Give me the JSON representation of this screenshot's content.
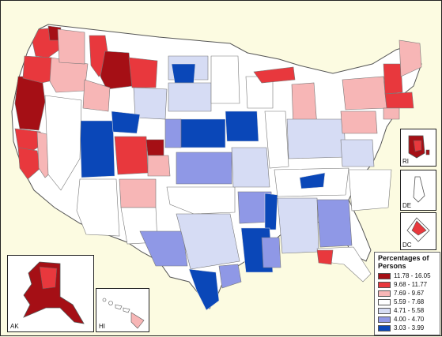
{
  "legend": {
    "title": "Percentages of Persons",
    "bins": [
      {
        "label": "11.78 - 16.05",
        "color": "#a50f15"
      },
      {
        "label": "9.68 - 11.77",
        "color": "#e8383d"
      },
      {
        "label": "7.69 - 9.67",
        "color": "#f7b6b6"
      },
      {
        "label": "5.59 - 7.68",
        "color": "#ffffff"
      },
      {
        "label": "4.71 - 5.58",
        "color": "#d6dcf4"
      },
      {
        "label": "4.00 - 4.70",
        "color": "#8f98e6"
      },
      {
        "label": "3.03 - 3.99",
        "color": "#0a47b8"
      }
    ]
  },
  "insets": {
    "ri": "RI",
    "de": "DE",
    "dc": "DC",
    "ak": "AK",
    "hi": "HI"
  }
}
